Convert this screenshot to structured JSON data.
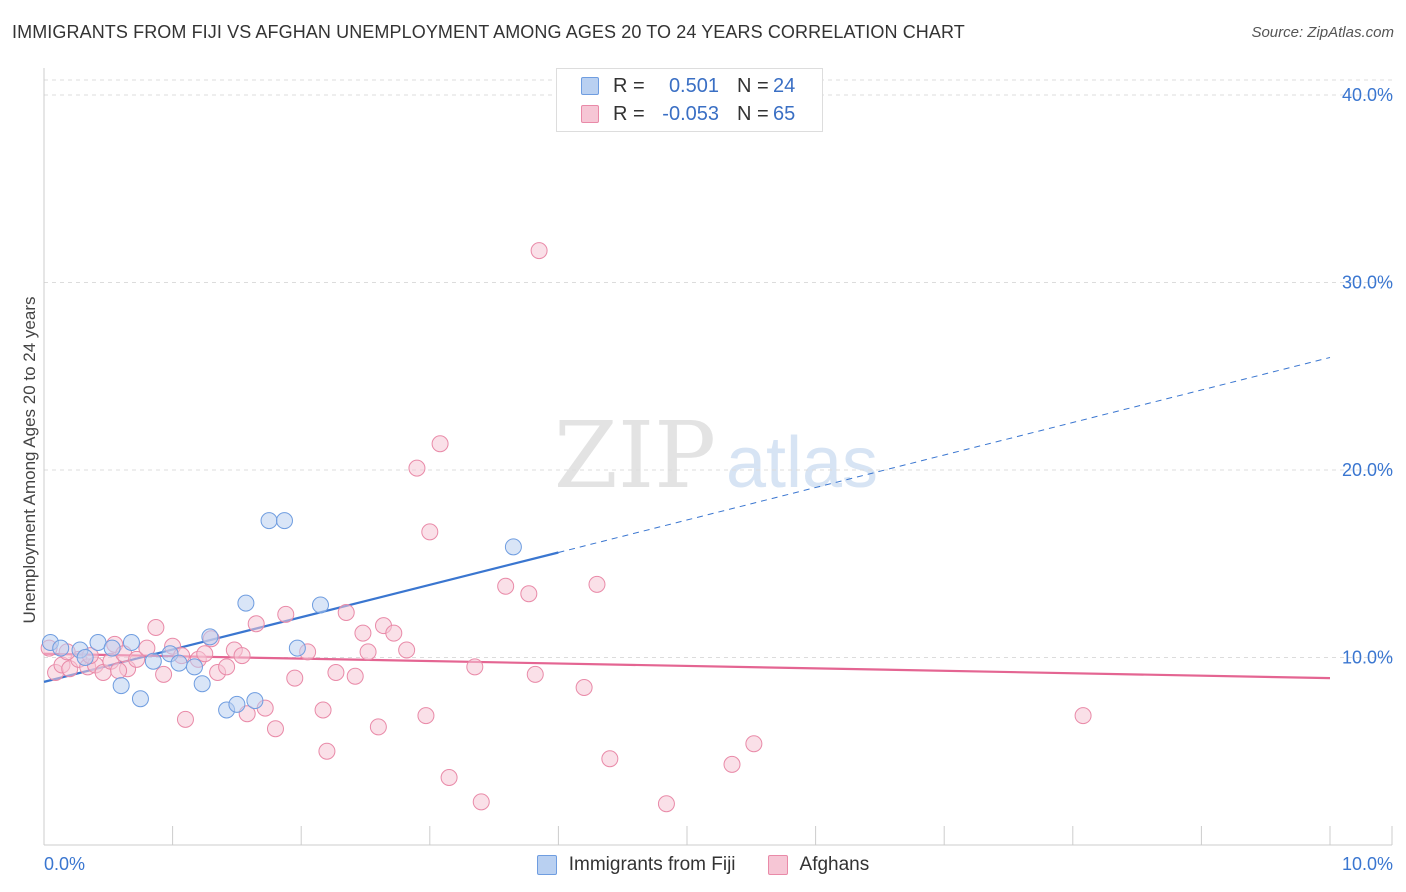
{
  "header": {
    "title": "IMMIGRANTS FROM FIJI VS AFGHAN UNEMPLOYMENT AMONG AGES 20 TO 24 YEARS CORRELATION CHART",
    "source": "Source: ZipAtlas.com"
  },
  "watermark": {
    "zip": "ZIP",
    "atlas": "atlas"
  },
  "legend": {
    "rows": [
      {
        "r_label": "R =",
        "r_value": "0.501",
        "n_label": "N =",
        "n_value": "24"
      },
      {
        "r_label": "R =",
        "r_value": "-0.053",
        "n_label": "N =",
        "n_value": "65"
      }
    ]
  },
  "chart_data": {
    "type": "scatter",
    "title": "IMMIGRANTS FROM FIJI VS AFGHAN UNEMPLOYMENT AMONG AGES 20 TO 24 YEARS CORRELATION CHART",
    "xlabel": "",
    "ylabel": "Unemployment Among Ages 20 to 24 years",
    "xlim": [
      0,
      10
    ],
    "ylim": [
      0,
      40.8
    ],
    "x_tick_labels": [
      "0.0%",
      "10.0%"
    ],
    "y_ticks": [
      10,
      20,
      30,
      40
    ],
    "y_tick_labels": [
      "10.0%",
      "20.0%",
      "30.0%",
      "40.0%"
    ],
    "grid": true,
    "series": [
      {
        "name": "Immigrants from Fiji",
        "color": "#6f9de0",
        "fill": "#b9d0f1",
        "r": 0.501,
        "n": 24,
        "trend": {
          "x0": 0.0,
          "y0": 8.7,
          "x1": 4.0,
          "y1": 15.6,
          "dash_x1": 10.0,
          "dash_y1": 26.0,
          "color": "#3a76d0"
        },
        "points": [
          {
            "x": 0.05,
            "y": 10.8
          },
          {
            "x": 0.13,
            "y": 10.5
          },
          {
            "x": 0.28,
            "y": 10.4
          },
          {
            "x": 0.32,
            "y": 10.0
          },
          {
            "x": 0.42,
            "y": 10.8
          },
          {
            "x": 0.53,
            "y": 10.5
          },
          {
            "x": 0.6,
            "y": 8.5
          },
          {
            "x": 0.68,
            "y": 10.8
          },
          {
            "x": 0.75,
            "y": 7.8
          },
          {
            "x": 0.85,
            "y": 9.8
          },
          {
            "x": 0.98,
            "y": 10.2
          },
          {
            "x": 1.05,
            "y": 9.7
          },
          {
            "x": 1.17,
            "y": 9.5
          },
          {
            "x": 1.23,
            "y": 8.6
          },
          {
            "x": 1.29,
            "y": 11.1
          },
          {
            "x": 1.42,
            "y": 7.2
          },
          {
            "x": 1.5,
            "y": 7.5
          },
          {
            "x": 1.57,
            "y": 12.9
          },
          {
            "x": 1.64,
            "y": 7.7
          },
          {
            "x": 1.75,
            "y": 17.3
          },
          {
            "x": 1.87,
            "y": 17.3
          },
          {
            "x": 2.15,
            "y": 12.8
          },
          {
            "x": 1.97,
            "y": 10.5
          },
          {
            "x": 3.65,
            "y": 15.9
          }
        ]
      },
      {
        "name": "Afghans",
        "color": "#e98aa8",
        "fill": "#f6c6d5",
        "r": -0.053,
        "n": 65,
        "trend": {
          "x0": 0.0,
          "y0": 10.2,
          "x1": 10.0,
          "y1": 8.9,
          "color": "#e46592"
        },
        "points": [
          {
            "x": 0.04,
            "y": 10.5
          },
          {
            "x": 0.09,
            "y": 9.2
          },
          {
            "x": 0.14,
            "y": 9.6
          },
          {
            "x": 0.2,
            "y": 9.4
          },
          {
            "x": 0.27,
            "y": 9.9
          },
          {
            "x": 0.34,
            "y": 9.5
          },
          {
            "x": 0.4,
            "y": 9.6
          },
          {
            "x": 0.46,
            "y": 9.2
          },
          {
            "x": 0.52,
            "y": 9.8
          },
          {
            "x": 0.55,
            "y": 10.7
          },
          {
            "x": 0.62,
            "y": 10.2
          },
          {
            "x": 0.65,
            "y": 9.4
          },
          {
            "x": 0.72,
            "y": 9.9
          },
          {
            "x": 0.8,
            "y": 10.5
          },
          {
            "x": 0.87,
            "y": 11.6
          },
          {
            "x": 0.93,
            "y": 9.1
          },
          {
            "x": 1.0,
            "y": 10.6
          },
          {
            "x": 1.07,
            "y": 10.1
          },
          {
            "x": 1.1,
            "y": 6.7
          },
          {
            "x": 1.2,
            "y": 9.9
          },
          {
            "x": 1.25,
            "y": 10.2
          },
          {
            "x": 1.3,
            "y": 11.0
          },
          {
            "x": 1.35,
            "y": 9.2
          },
          {
            "x": 1.42,
            "y": 9.5
          },
          {
            "x": 1.48,
            "y": 10.4
          },
          {
            "x": 1.54,
            "y": 10.1
          },
          {
            "x": 1.58,
            "y": 7.0
          },
          {
            "x": 1.65,
            "y": 11.8
          },
          {
            "x": 1.72,
            "y": 7.3
          },
          {
            "x": 1.8,
            "y": 6.2
          },
          {
            "x": 1.88,
            "y": 12.3
          },
          {
            "x": 1.95,
            "y": 8.9
          },
          {
            "x": 2.05,
            "y": 10.3
          },
          {
            "x": 2.17,
            "y": 7.2
          },
          {
            "x": 2.2,
            "y": 5.0
          },
          {
            "x": 2.27,
            "y": 9.2
          },
          {
            "x": 2.35,
            "y": 12.4
          },
          {
            "x": 2.42,
            "y": 9.0
          },
          {
            "x": 2.48,
            "y": 11.3
          },
          {
            "x": 2.52,
            "y": 10.3
          },
          {
            "x": 2.6,
            "y": 6.3
          },
          {
            "x": 2.64,
            "y": 11.7
          },
          {
            "x": 2.72,
            "y": 11.3
          },
          {
            "x": 2.82,
            "y": 10.4
          },
          {
            "x": 2.9,
            "y": 20.1
          },
          {
            "x": 2.97,
            "y": 6.9
          },
          {
            "x": 3.0,
            "y": 16.7
          },
          {
            "x": 3.08,
            "y": 21.4
          },
          {
            "x": 3.15,
            "y": 3.6
          },
          {
            "x": 3.35,
            "y": 9.5
          },
          {
            "x": 3.4,
            "y": 2.3
          },
          {
            "x": 3.59,
            "y": 13.8
          },
          {
            "x": 3.77,
            "y": 13.4
          },
          {
            "x": 3.82,
            "y": 9.1
          },
          {
            "x": 3.85,
            "y": 31.7
          },
          {
            "x": 4.2,
            "y": 8.4
          },
          {
            "x": 4.3,
            "y": 13.9
          },
          {
            "x": 4.4,
            "y": 4.6
          },
          {
            "x": 4.84,
            "y": 2.2
          },
          {
            "x": 5.35,
            "y": 4.3
          },
          {
            "x": 5.52,
            "y": 5.4
          },
          {
            "x": 8.08,
            "y": 6.9
          },
          {
            "x": 0.58,
            "y": 9.3
          },
          {
            "x": 0.36,
            "y": 10.1
          },
          {
            "x": 0.18,
            "y": 10.3
          }
        ]
      }
    ]
  }
}
